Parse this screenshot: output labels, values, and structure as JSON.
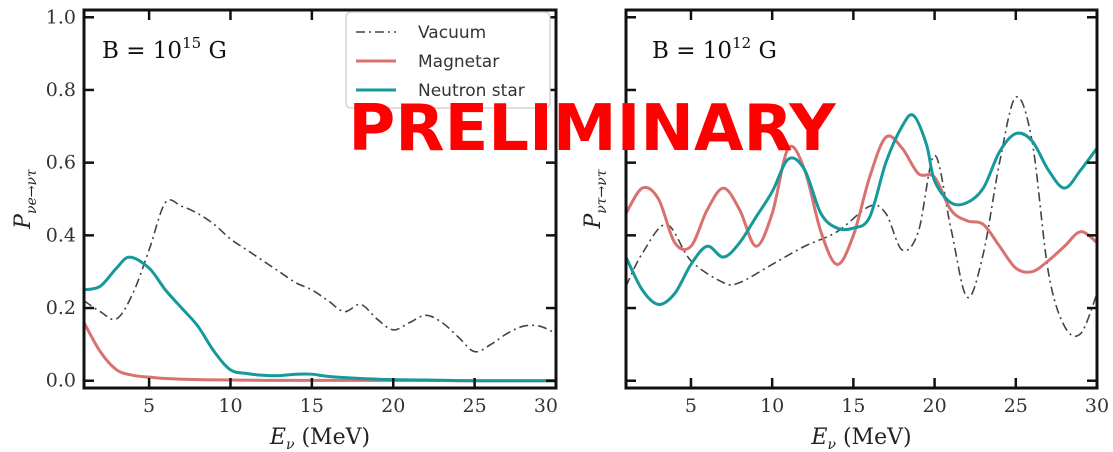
{
  "watermark": {
    "text": "PRELIMINARY",
    "color": "#ff0000"
  },
  "colors": {
    "vacuum": "#444444",
    "magnetar": "#d9726f",
    "neutron_star": "#16999a",
    "axis": "#111111"
  },
  "chart_data": [
    {
      "type": "line",
      "annotation": {
        "prefix": "B = 10",
        "exp": "15",
        "suffix": " G"
      },
      "xlabel": {
        "main": "E",
        "sub": "ν",
        "rest": " (MeV)"
      },
      "ylabel": {
        "main": "P",
        "sub": "νe→ντ"
      },
      "xlim": [
        1,
        30
      ],
      "ylim": [
        -0.02,
        1.02
      ],
      "xticks": [
        5,
        10,
        15,
        20,
        25,
        30
      ],
      "xtick_labels": [
        "5",
        "10",
        "15",
        "20",
        "25",
        "30"
      ],
      "yticks": [
        0.0,
        0.2,
        0.4,
        0.6,
        0.8,
        1.0
      ],
      "ytick_labels": [
        "0.0",
        "0.2",
        "0.4",
        "0.6",
        "0.8",
        "1.0"
      ],
      "legend": {
        "position": "top-right",
        "entries": [
          "Vacuum",
          "Magnetar",
          "Neutron star"
        ]
      },
      "series": [
        {
          "name": "Vacuum",
          "style": "dashdot",
          "x": [
            1,
            2,
            3,
            4,
            5,
            6,
            7,
            8,
            9,
            10,
            11,
            12,
            13,
            14,
            15,
            16,
            17,
            18,
            19,
            20,
            21,
            22,
            23,
            24,
            25,
            26,
            27,
            28,
            29,
            30
          ],
          "y": [
            0.22,
            0.19,
            0.17,
            0.24,
            0.36,
            0.49,
            0.48,
            0.46,
            0.43,
            0.39,
            0.36,
            0.33,
            0.3,
            0.27,
            0.25,
            0.22,
            0.19,
            0.21,
            0.17,
            0.14,
            0.16,
            0.18,
            0.16,
            0.12,
            0.08,
            0.1,
            0.13,
            0.15,
            0.15,
            0.13
          ]
        },
        {
          "name": "Magnetar",
          "style": "solid",
          "x": [
            1,
            2,
            3,
            4,
            5,
            6,
            8,
            10,
            12,
            14,
            16,
            18,
            20,
            22,
            24,
            26,
            28,
            30
          ],
          "y": [
            0.16,
            0.08,
            0.03,
            0.015,
            0.01,
            0.006,
            0.003,
            0.002,
            0.001,
            0.001,
            0.001,
            0.001,
            0.001,
            0.001,
            0.0,
            0.0,
            0.0,
            0.0
          ]
        },
        {
          "name": "Neutron star",
          "style": "solid",
          "x": [
            1,
            2,
            3,
            3.8,
            5,
            6,
            7,
            8,
            9,
            10,
            11,
            12,
            13,
            14,
            15,
            16,
            18,
            20,
            22,
            25,
            30
          ],
          "y": [
            0.25,
            0.26,
            0.31,
            0.34,
            0.31,
            0.25,
            0.2,
            0.15,
            0.08,
            0.03,
            0.02,
            0.015,
            0.014,
            0.018,
            0.018,
            0.012,
            0.006,
            0.003,
            0.002,
            0.0,
            0.0
          ]
        }
      ]
    },
    {
      "type": "line",
      "annotation": {
        "prefix": "B = 10",
        "exp": "12",
        "suffix": " G"
      },
      "xlabel": {
        "main": "E",
        "sub": "ν",
        "rest": "  (MeV)"
      },
      "ylabel": {
        "main": "P",
        "sub": "ντ→ντ"
      },
      "xlim": [
        1,
        30
      ],
      "ylim": [
        -0.02,
        1.02
      ],
      "xticks": [
        5,
        10,
        15,
        20,
        25,
        30
      ],
      "xtick_labels": [
        "5",
        "10",
        "15",
        "20",
        "25",
        "30"
      ],
      "yticks": [
        0.0,
        0.2,
        0.4,
        0.6,
        0.8,
        1.0
      ],
      "ytick_labels": [],
      "series": [
        {
          "name": "Vacuum",
          "style": "dashdot",
          "x": [
            1,
            2,
            3.5,
            5,
            7,
            8,
            10,
            12,
            14,
            16,
            17,
            18,
            19,
            20,
            21,
            22,
            23,
            24,
            25,
            26,
            27,
            28,
            29,
            30
          ],
          "y": [
            0.26,
            0.35,
            0.43,
            0.33,
            0.27,
            0.27,
            0.32,
            0.37,
            0.41,
            0.48,
            0.46,
            0.36,
            0.41,
            0.62,
            0.42,
            0.23,
            0.35,
            0.6,
            0.78,
            0.66,
            0.3,
            0.15,
            0.13,
            0.24
          ]
        },
        {
          "name": "Magnetar",
          "style": "solid",
          "x": [
            1,
            2,
            3,
            4,
            5,
            6,
            7,
            8,
            9,
            10,
            11,
            12,
            13,
            14,
            15,
            16,
            17,
            18,
            19,
            20,
            21,
            22,
            23,
            24,
            25,
            26,
            27,
            28,
            29,
            30
          ],
          "y": [
            0.46,
            0.53,
            0.5,
            0.38,
            0.37,
            0.47,
            0.53,
            0.47,
            0.37,
            0.46,
            0.64,
            0.58,
            0.41,
            0.32,
            0.4,
            0.56,
            0.67,
            0.64,
            0.57,
            0.56,
            0.47,
            0.44,
            0.43,
            0.37,
            0.31,
            0.3,
            0.33,
            0.37,
            0.41,
            0.38
          ]
        },
        {
          "name": "Neutron star",
          "style": "solid",
          "x": [
            1,
            2,
            3,
            4,
            5,
            6,
            7,
            8,
            9,
            10,
            11,
            12,
            13,
            14,
            15,
            16,
            17,
            18,
            18.7,
            19.5,
            20,
            21,
            22,
            23,
            24,
            25,
            26,
            27,
            28,
            29,
            30
          ],
          "y": [
            0.34,
            0.25,
            0.21,
            0.24,
            0.32,
            0.37,
            0.34,
            0.38,
            0.45,
            0.52,
            0.61,
            0.58,
            0.46,
            0.42,
            0.42,
            0.45,
            0.6,
            0.7,
            0.73,
            0.65,
            0.55,
            0.49,
            0.49,
            0.53,
            0.63,
            0.68,
            0.66,
            0.58,
            0.53,
            0.58,
            0.64
          ]
        }
      ]
    }
  ]
}
